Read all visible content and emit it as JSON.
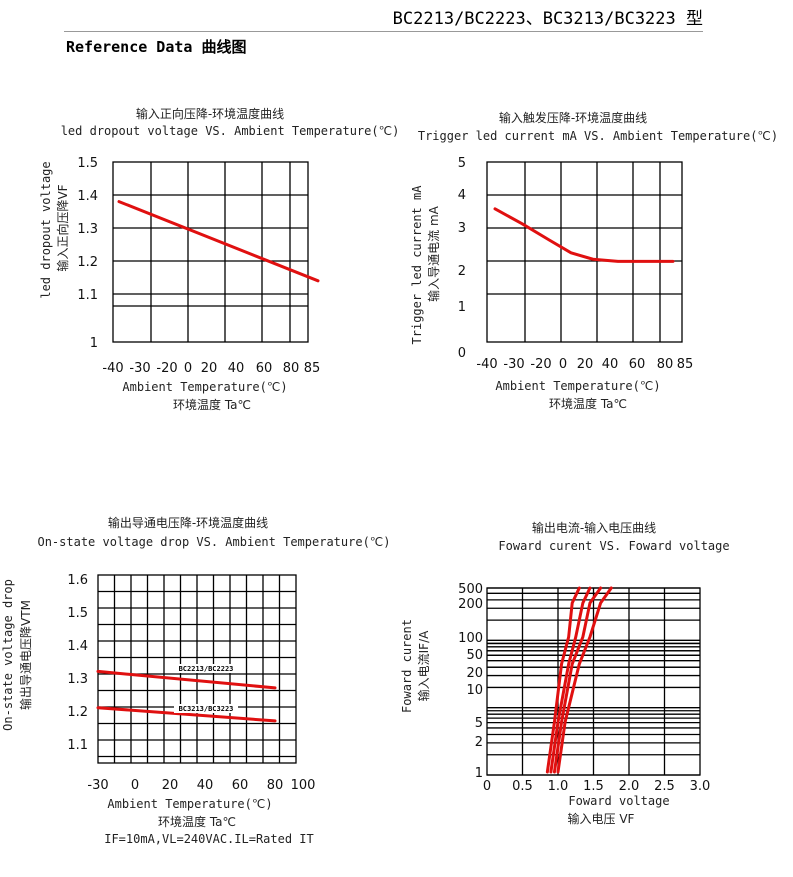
{
  "header": {
    "model": "BC2213/BC2223、BC3213/BC3223 型",
    "section": "Reference Data 曲线图"
  },
  "chart_data": [
    {
      "type": "line",
      "title_cn": "输入正向压降-环境温度曲线",
      "title": "led dropout voltage VS.  Ambient Temperature(℃)",
      "ylabel": "led dropout voltage",
      "ylabel_cn": "输入正向压降VF",
      "xlabel": "Ambient Temperature(℃)",
      "xlabel_cn": "环境温度    Ta℃",
      "x_ticks": [
        "-40",
        "-30",
        "-20",
        "0",
        "20",
        "40",
        "60",
        "80",
        "85"
      ],
      "y_ticks": [
        "1.5",
        "1.4",
        "1.3",
        "1.2",
        "1.1",
        "1"
      ],
      "grid": true,
      "series": [
        {
          "x": [
            -40,
            85
          ],
          "y": [
            1.38,
            1.14
          ]
        }
      ]
    },
    {
      "type": "line",
      "title_cn": "输入触发压降-环境温度曲线",
      "title": "Trigger led current mA VS.  Ambient Temperature(℃)",
      "ylabel": "Trigger led current mA",
      "ylabel_cn": "输入导通电流 mA",
      "xlabel": "Ambient Temperature(℃)",
      "xlabel_cn": "环境温度    Ta℃",
      "x_ticks": [
        "-40",
        "-30",
        "-20",
        "0",
        "20",
        "40",
        "60",
        "80",
        "85"
      ],
      "y_ticks": [
        "5",
        "4",
        "3",
        "2",
        "1",
        "0"
      ],
      "grid": true,
      "series": [
        {
          "x": [
            -40,
            -30,
            -20,
            0,
            20,
            40,
            60,
            80
          ],
          "y": [
            3.55,
            3.1,
            2.7,
            2.4,
            2.25,
            2.2,
            2.2,
            2.2
          ]
        }
      ]
    },
    {
      "type": "line",
      "title_cn": "输出导通电压降-环境温度曲线",
      "title": "On-state voltage drop  VS.  Ambient Temperature(℃)",
      "ylabel": "On-state voltage drop",
      "ylabel_cn": "输出导通电压降VTM",
      "xlabel": "Ambient Temperature(℃)",
      "xlabel_cn": "环境温度    Ta℃",
      "note": "IF=10mA,VL=240VAC.IL=Rated  IT",
      "x_ticks": [
        "-30",
        "0",
        "20",
        "40",
        "60",
        "80",
        "100"
      ],
      "y_ticks": [
        "1.6",
        "1.5",
        "1.4",
        "1.3",
        "1.2",
        "1.1"
      ],
      "grid": true,
      "series": [
        {
          "name": "BC2213/BC2223",
          "x": [
            -30,
            80
          ],
          "y": [
            1.32,
            1.27
          ]
        },
        {
          "name": "BC3213/BC3223",
          "x": [
            -30,
            80
          ],
          "y": [
            1.21,
            1.17
          ]
        }
      ]
    },
    {
      "type": "line",
      "title_cn": "输出电流-输入电压曲线",
      "title": "Foward curent VS.  Foward voltage",
      "ylabel": "Foward curent",
      "ylabel_cn": "输入电流IF/A",
      "xlabel": "Foward voltage",
      "xlabel_cn": "输入电压  VF",
      "x_ticks": [
        "0",
        "0.5",
        "1.0",
        "1.5",
        "2.0",
        "2.5",
        "3.0"
      ],
      "y_ticks": [
        "500",
        "200",
        "100",
        "50",
        "20",
        "10",
        "5",
        "2",
        "1"
      ],
      "y_scale": "log",
      "grid": true,
      "series": [
        {
          "x": [
            0.85,
            0.95,
            1.05,
            1.15,
            1.2,
            1.3
          ],
          "y": [
            1,
            5,
            30,
            100,
            200,
            500
          ]
        },
        {
          "x": [
            0.9,
            1.0,
            1.15,
            1.25,
            1.35,
            1.45
          ],
          "y": [
            1,
            5,
            30,
            100,
            200,
            500
          ]
        },
        {
          "x": [
            0.95,
            1.05,
            1.2,
            1.35,
            1.45,
            1.6
          ],
          "y": [
            1,
            5,
            30,
            100,
            200,
            500
          ]
        },
        {
          "x": [
            1.0,
            1.1,
            1.3,
            1.45,
            1.6,
            1.75
          ],
          "y": [
            1,
            5,
            30,
            100,
            200,
            500
          ]
        }
      ]
    }
  ]
}
